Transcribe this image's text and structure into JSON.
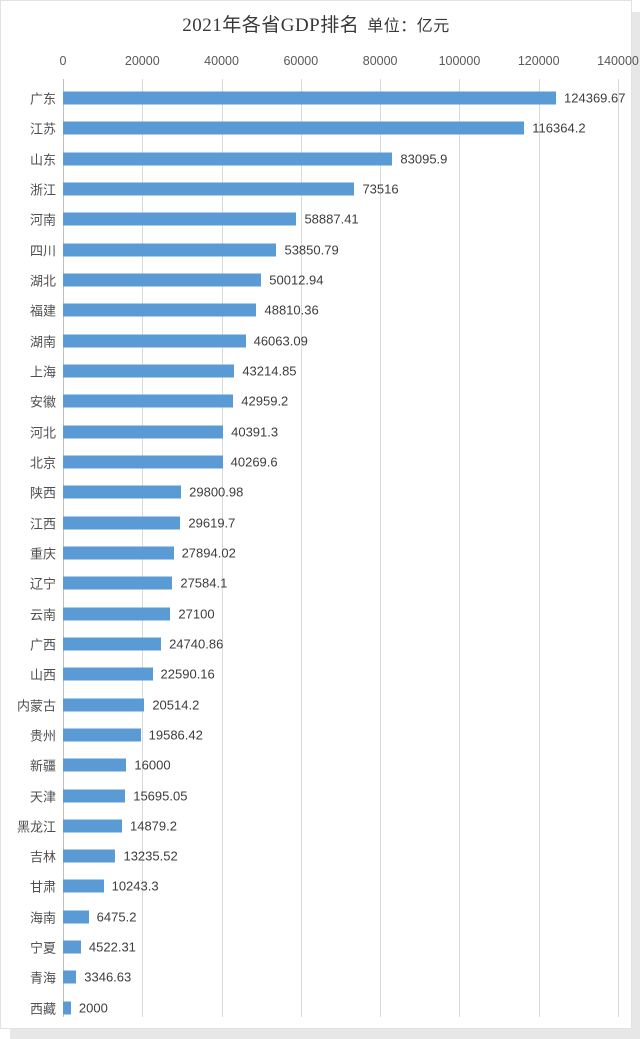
{
  "header": {
    "title": "2021年各省GDP排名",
    "unit_label": "单位：亿元"
  },
  "chart_data": {
    "type": "bar",
    "orientation": "horizontal",
    "title": "2021年各省GDP排名 单位：亿元",
    "unit": "亿元",
    "categories": [
      "广东",
      "江苏",
      "山东",
      "浙江",
      "河南",
      "四川",
      "湖北",
      "福建",
      "湖南",
      "上海",
      "安徽",
      "河北",
      "北京",
      "陕西",
      "江西",
      "重庆",
      "辽宁",
      "云南",
      "广西",
      "山西",
      "内蒙古",
      "贵州",
      "新疆",
      "天津",
      "黑龙江",
      "吉林",
      "甘肃",
      "海南",
      "宁夏",
      "青海",
      "西藏"
    ],
    "values": [
      124369.67,
      116364.2,
      83095.9,
      73516,
      58887.41,
      53850.79,
      50012.94,
      48810.36,
      46063.09,
      43214.85,
      42959.2,
      40391.3,
      40269.6,
      29800.98,
      29619.7,
      27894.02,
      27584.1,
      27100,
      24740.86,
      22590.16,
      20514.2,
      19586.42,
      16000,
      15695.05,
      14879.2,
      13235.52,
      10243.3,
      6475.2,
      4522.31,
      3346.63,
      2000
    ],
    "value_labels": [
      "124369.67",
      "116364.2",
      "83095.9",
      "73516",
      "58887.41",
      "53850.79",
      "50012.94",
      "48810.36",
      "46063.09",
      "43214.85",
      "42959.2",
      "40391.3",
      "40269.6",
      "29800.98",
      "29619.7",
      "27894.02",
      "27584.1",
      "27100",
      "24740.86",
      "22590.16",
      "20514.2",
      "19586.42",
      "16000",
      "15695.05",
      "14879.2",
      "13235.52",
      "10243.3",
      "6475.2",
      "4522.31",
      "3346.63",
      "2000"
    ],
    "xlim": [
      0,
      140000
    ],
    "x_ticks": [
      0,
      20000,
      40000,
      60000,
      80000,
      100000,
      120000,
      140000
    ],
    "x_tick_labels": [
      "0",
      "20000",
      "40000",
      "60000",
      "80000",
      "100000",
      "120000",
      "140000"
    ],
    "grid": true,
    "legend": "none",
    "colors": {
      "bar": "#5B9BD5",
      "gridline": "#D9D9D9",
      "axis_line": "#C0C0C0",
      "tick_text": "#595959",
      "category_text": "#4F4F4F",
      "value_text": "#3D3D3D",
      "title_text": "#383838"
    }
  }
}
